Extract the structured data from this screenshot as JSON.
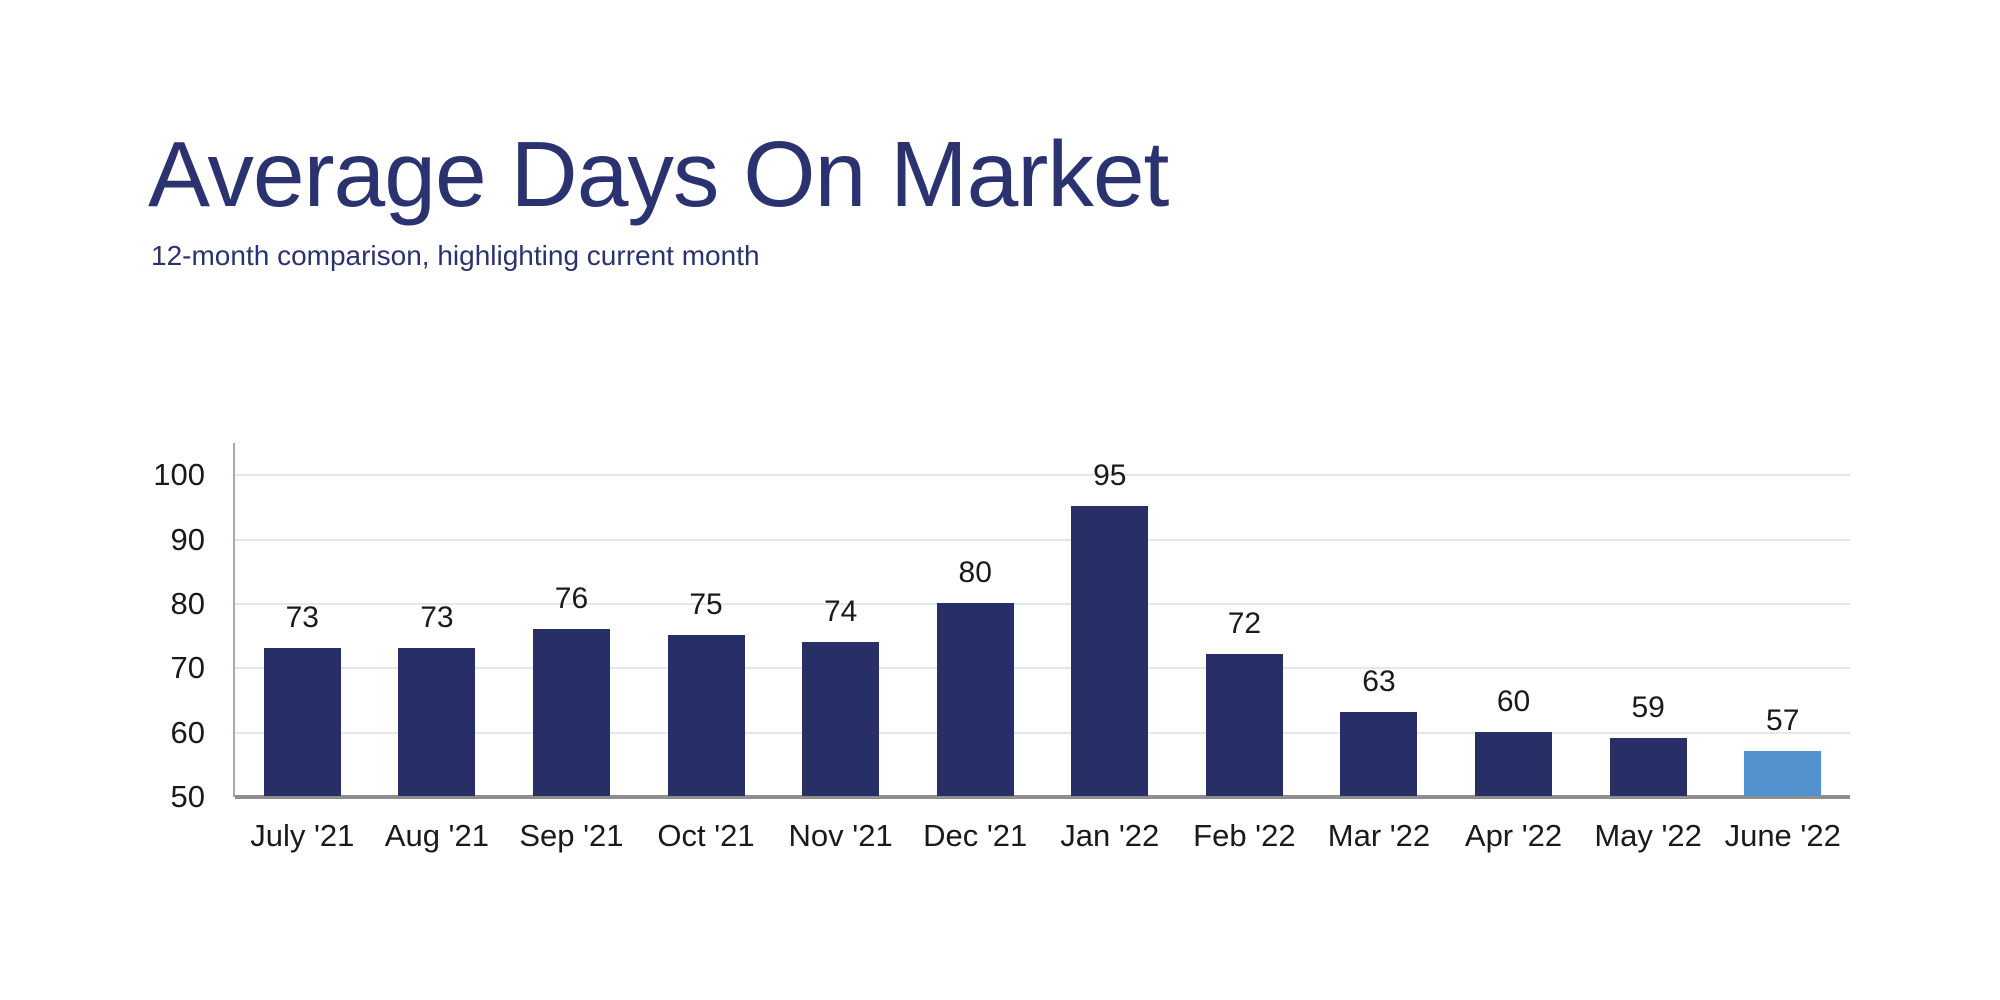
{
  "header": {
    "title": "Average Days On Market",
    "subtitle": "12-month comparison, highlighting current month",
    "title_color": "#2B3270",
    "subtitle_color": "#2B3270"
  },
  "chart_data": {
    "type": "bar",
    "title": "Average Days On Market",
    "subtitle": "12-month comparison, highlighting current month",
    "categories": [
      "July '21",
      "Aug '21",
      "Sep '21",
      "Oct '21",
      "Nov '21",
      "Dec '21",
      "Jan '22",
      "Feb '22",
      "Mar '22",
      "Apr '22",
      "May '22",
      "June '22"
    ],
    "values": [
      73,
      73,
      76,
      75,
      74,
      80,
      95,
      72,
      63,
      60,
      59,
      57
    ],
    "data_labels_shown": true,
    "highlighted_category": "June '22",
    "highlighted_index": 11,
    "xlabel": "",
    "ylabel": "",
    "ylim": [
      50,
      105
    ],
    "yticks": [
      50,
      60,
      70,
      80,
      90,
      100
    ],
    "grid": "horizontal",
    "legend": "none",
    "bar_color": "#272F66",
    "highlight_color": "#5191CE",
    "gridline_color": "#E2E7F1",
    "baseline_color": "#8E8E8E",
    "axis_line_color": "#A9A9A9",
    "tick_label_color": "#1A1A1A",
    "value_label_color": "#1A1A1A"
  }
}
